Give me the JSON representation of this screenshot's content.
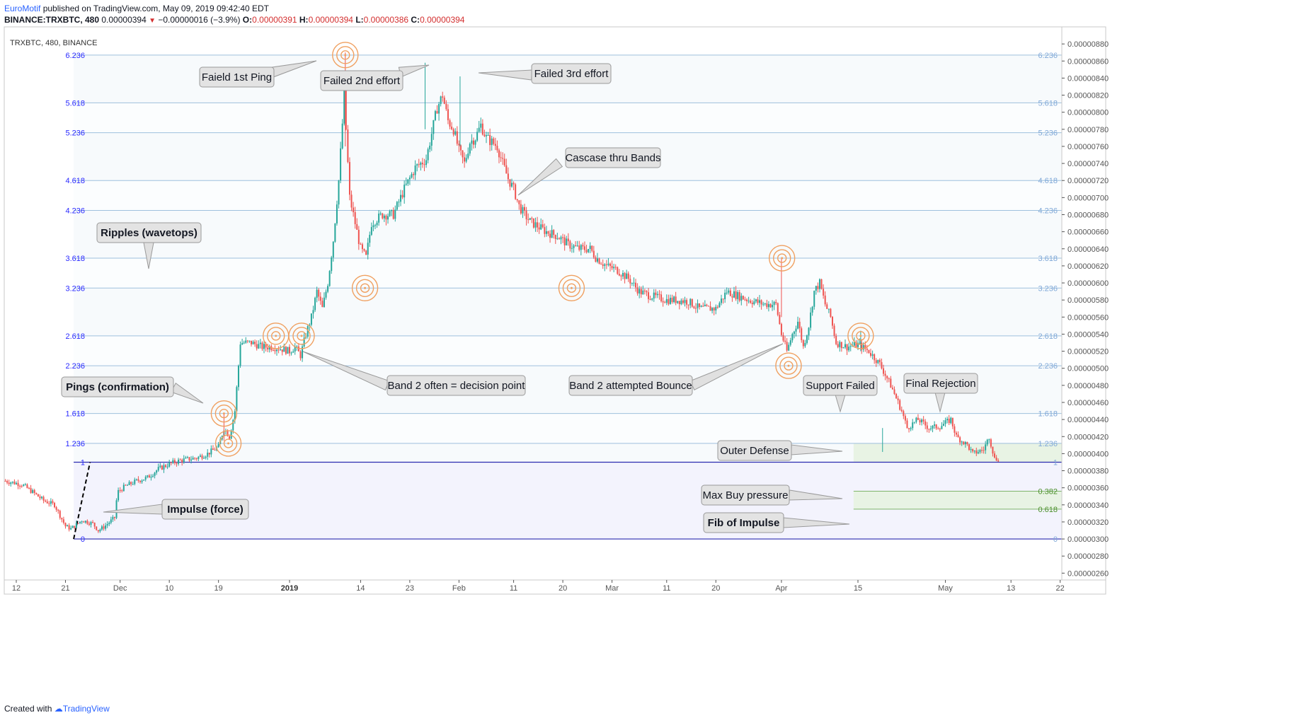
{
  "header": {
    "author": "EuroMotif",
    "published": "published on TradingView.com, May 09, 2019 09:42:40 EDT",
    "symbol_line": "BINANCE:TRXBTC, 480",
    "last": "0.00000394",
    "change": "−0.00000016 (−3.9%)",
    "o_label": "O:",
    "o": "0.00000391",
    "h_label": "H:",
    "h": "0.00000394",
    "l_label": "L:",
    "l": "0.00000386",
    "c_label": "C:",
    "c": "0.00000394"
  },
  "chart_title": "TRXBTC, 480, BINANCE",
  "footer": {
    "created_with": "Created with",
    "brand": "TradingView"
  },
  "colors": {
    "up": "#26a69a",
    "down": "#ef5350",
    "fib_line": "#9ec0dd",
    "base_line": "#2a2ab0",
    "ring": "#f0a060",
    "green_zone": "#e8f3e4"
  },
  "chart_data": {
    "type": "candlestick",
    "price_axis": [
      "0.00000880",
      "0.00000860",
      "0.00000840",
      "0.00000820",
      "0.00000800",
      "0.00000780",
      "0.00000760",
      "0.00000740",
      "0.00000720",
      "0.00000700",
      "0.00000680",
      "0.00000660",
      "0.00000640",
      "0.00000620",
      "0.00000600",
      "0.00000580",
      "0.00000560",
      "0.00000540",
      "0.00000520",
      "0.00000500",
      "0.00000480",
      "0.00000460",
      "0.00000440",
      "0.00000420",
      "0.00000400",
      "0.00000380",
      "0.00000360",
      "0.00000340",
      "0.00000320",
      "0.00000300",
      "0.00000280",
      "0.00000260"
    ],
    "price_axis_values": [
      880,
      860,
      840,
      820,
      800,
      780,
      760,
      740,
      720,
      700,
      680,
      660,
      640,
      620,
      600,
      580,
      560,
      540,
      520,
      500,
      480,
      460,
      440,
      420,
      400,
      380,
      360,
      340,
      320,
      300,
      280,
      260
    ],
    "ylim": [
      252,
      900
    ],
    "time_axis": [
      {
        "label": "12",
        "day": -13
      },
      {
        "label": "21",
        "day": -4
      },
      {
        "label": "Dec",
        "day": 6
      },
      {
        "label": "10",
        "day": 15
      },
      {
        "label": "19",
        "day": 24
      },
      {
        "label": "2019",
        "day": 37
      },
      {
        "label": "14",
        "day": 50
      },
      {
        "label": "23",
        "day": 59
      },
      {
        "label": "Feb",
        "day": 68
      },
      {
        "label": "11",
        "day": 78
      },
      {
        "label": "20",
        "day": 87
      },
      {
        "label": "Mar",
        "day": 96
      },
      {
        "label": "11",
        "day": 106
      },
      {
        "label": "20",
        "day": 115
      },
      {
        "label": "Apr",
        "day": 127
      },
      {
        "label": "15",
        "day": 141
      },
      {
        "label": "May",
        "day": 157
      },
      {
        "label": "13",
        "day": 169
      },
      {
        "label": "22",
        "day": 178
      }
    ],
    "xlim": [
      -15.2,
      178.3
    ],
    "fib_levels": [
      {
        "label": "6.236",
        "price": 867
      },
      {
        "label": "5.618",
        "price": 811
      },
      {
        "label": "5.236",
        "price": 776
      },
      {
        "label": "4.618",
        "price": 720
      },
      {
        "label": "4.236",
        "price": 685
      },
      {
        "label": "3.618",
        "price": 629
      },
      {
        "label": "3.236",
        "price": 594
      },
      {
        "label": "2.618",
        "price": 538
      },
      {
        "label": "2.236",
        "price": 503
      },
      {
        "label": "1.618",
        "price": 447
      },
      {
        "label": "1.236",
        "price": 412
      },
      {
        "label": "1",
        "price": 390
      },
      {
        "label": "0",
        "price": 300
      }
    ],
    "fib_sub_levels": [
      {
        "label": "0.382",
        "price": 356
      },
      {
        "label": "0.618",
        "price": 335
      }
    ],
    "price_path": [
      [
        -15,
        368
      ],
      [
        -12,
        364
      ],
      [
        -10,
        355
      ],
      [
        -8,
        345
      ],
      [
        -6,
        340
      ],
      [
        -4,
        315
      ],
      [
        -3,
        312
      ],
      [
        -1,
        322
      ],
      [
        1,
        318
      ],
      [
        2,
        310
      ],
      [
        3,
        314
      ],
      [
        5,
        325
      ],
      [
        5.5,
        355
      ],
      [
        7,
        362
      ],
      [
        9,
        368
      ],
      [
        11,
        372
      ],
      [
        13,
        382
      ],
      [
        15,
        388
      ],
      [
        17,
        392
      ],
      [
        20,
        395
      ],
      [
        22,
        400
      ],
      [
        24,
        408
      ],
      [
        25,
        430
      ],
      [
        26,
        420
      ],
      [
        27,
        450
      ],
      [
        28,
        530
      ],
      [
        30,
        530
      ],
      [
        32,
        525
      ],
      [
        34,
        525
      ],
      [
        36,
        522
      ],
      [
        37,
        520
      ],
      [
        38,
        525
      ],
      [
        39,
        515
      ],
      [
        40,
        540
      ],
      [
        41,
        560
      ],
      [
        42,
        590
      ],
      [
        43,
        570
      ],
      [
        44,
        600
      ],
      [
        45,
        650
      ],
      [
        46,
        720
      ],
      [
        47,
        820
      ],
      [
        48,
        700
      ],
      [
        49,
        670
      ],
      [
        50,
        640
      ],
      [
        51,
        630
      ],
      [
        52,
        670
      ],
      [
        54,
        680
      ],
      [
        56,
        680
      ],
      [
        58,
        710
      ],
      [
        60,
        735
      ],
      [
        62,
        745
      ],
      [
        64,
        805
      ],
      [
        65,
        820
      ],
      [
        66,
        790
      ],
      [
        67,
        780
      ],
      [
        68,
        755
      ],
      [
        69,
        740
      ],
      [
        70,
        765
      ],
      [
        71,
        770
      ],
      [
        72,
        785
      ],
      [
        73,
        770
      ],
      [
        75,
        760
      ],
      [
        76,
        740
      ],
      [
        77,
        722
      ],
      [
        78,
        710
      ],
      [
        79,
        690
      ],
      [
        80,
        680
      ],
      [
        81,
        672
      ],
      [
        82,
        668
      ],
      [
        84,
        660
      ],
      [
        86,
        655
      ],
      [
        88,
        645
      ],
      [
        90,
        640
      ],
      [
        92,
        640
      ],
      [
        93,
        630
      ],
      [
        95,
        620
      ],
      [
        97,
        615
      ],
      [
        99,
        605
      ],
      [
        101,
        590
      ],
      [
        103,
        585
      ],
      [
        106,
        580
      ],
      [
        108,
        580
      ],
      [
        110,
        578
      ],
      [
        112,
        570
      ],
      [
        115,
        570
      ],
      [
        117,
        590
      ],
      [
        119,
        585
      ],
      [
        121,
        580
      ],
      [
        124,
        575
      ],
      [
        126,
        575
      ],
      [
        127,
        540
      ],
      [
        128,
        520
      ],
      [
        129,
        540
      ],
      [
        130,
        555
      ],
      [
        131,
        525
      ],
      [
        132,
        550
      ],
      [
        133,
        590
      ],
      [
        134,
        600
      ],
      [
        135,
        575
      ],
      [
        136,
        560
      ],
      [
        137,
        530
      ],
      [
        139,
        525
      ],
      [
        141,
        528
      ],
      [
        143,
        520
      ],
      [
        145,
        505
      ],
      [
        147,
        480
      ],
      [
        149,
        450
      ],
      [
        150,
        430
      ],
      [
        152,
        440
      ],
      [
        154,
        430
      ],
      [
        156,
        432
      ],
      [
        158,
        440
      ],
      [
        159,
        420
      ],
      [
        161,
        410
      ],
      [
        162,
        400
      ],
      [
        164,
        405
      ],
      [
        165,
        420
      ],
      [
        166,
        394
      ],
      [
        167,
        394
      ]
    ],
    "annotations": [
      {
        "label": "Faield 1st Ping",
        "bold": false
      },
      {
        "label": "Failed 2nd effort",
        "bold": false
      },
      {
        "label": "Failed 3rd effort",
        "bold": false
      },
      {
        "label": "Cascase thru Bands",
        "bold": false
      },
      {
        "label": "Ripples (wavetops)",
        "bold": true
      },
      {
        "label": "Pings (confirmation)",
        "bold": true
      },
      {
        "label": "Band 2 often = decision point",
        "bold": false
      },
      {
        "label": "Band 2 attempted Bounce",
        "bold": false
      },
      {
        "label": "Support Failed",
        "bold": false
      },
      {
        "label": "Final Rejection",
        "bold": false
      },
      {
        "label": "Outer Defense",
        "bold": false
      },
      {
        "label": "Max Buy pressure",
        "bold": false
      },
      {
        "label": "Fib of Impulse",
        "bold": true
      },
      {
        "label": "Impulse (force)",
        "bold": true
      }
    ]
  }
}
